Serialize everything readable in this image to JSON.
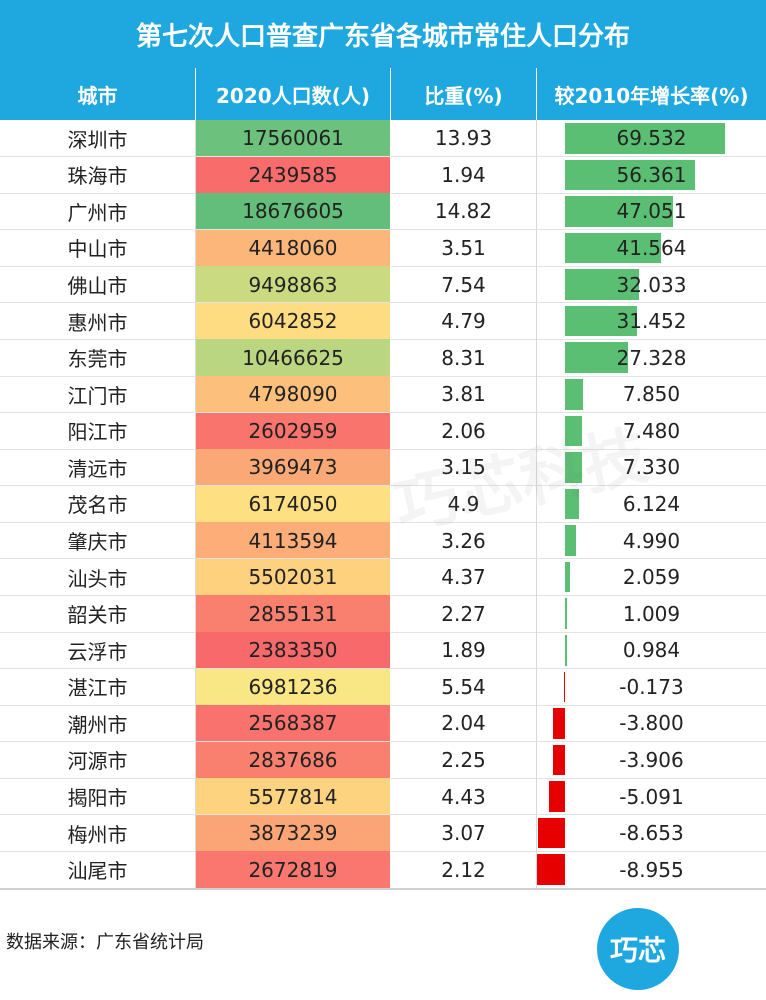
{
  "title": "第七次人口普查广东省各城市常住人口分布",
  "headers": {
    "city": "城市",
    "pop": "2020人口数(人)",
    "share": "比重(%)",
    "growth": "较2010年增长率(%)"
  },
  "footer": {
    "source": "数据来源：广东省统计局"
  },
  "logo": "巧芯",
  "watermark": "巧芯科技",
  "colors": {
    "header_bg": "#1FA7DF",
    "positive_bar": "#5BBF73",
    "negative_bar": "#E60000",
    "heat_high": "#63BE7B",
    "heat_mid": "#FFE984",
    "heat_low": "#F8696B"
  },
  "chart_data": {
    "type": "table",
    "title": "第七次人口普查广东省各城市常住人口分布",
    "columns": [
      "城市",
      "2020人口数(人)",
      "比重(%)",
      "较2010年增长率(%)"
    ],
    "rows": [
      {
        "city": "深圳市",
        "pop": 17560061,
        "share": "13.93",
        "growth": "69.532"
      },
      {
        "city": "珠海市",
        "pop": 2439585,
        "share": "1.94",
        "growth": "56.361"
      },
      {
        "city": "广州市",
        "pop": 18676605,
        "share": "14.82",
        "growth": "47.051"
      },
      {
        "city": "中山市",
        "pop": 4418060,
        "share": "3.51",
        "growth": "41.564"
      },
      {
        "city": "佛山市",
        "pop": 9498863,
        "share": "7.54",
        "growth": "32.033"
      },
      {
        "city": "惠州市",
        "pop": 6042852,
        "share": "4.79",
        "growth": "31.452"
      },
      {
        "city": "东莞市",
        "pop": 10466625,
        "share": "8.31",
        "growth": "27.328"
      },
      {
        "city": "江门市",
        "pop": 4798090,
        "share": "3.81",
        "growth": "7.850"
      },
      {
        "city": "阳江市",
        "pop": 2602959,
        "share": "2.06",
        "growth": "7.480"
      },
      {
        "city": "清远市",
        "pop": 3969473,
        "share": "3.15",
        "growth": "7.330"
      },
      {
        "city": "茂名市",
        "pop": 6174050,
        "share": "4.9",
        "growth": "6.124"
      },
      {
        "city": "肇庆市",
        "pop": 4113594,
        "share": "3.26",
        "growth": "4.990"
      },
      {
        "city": "汕头市",
        "pop": 5502031,
        "share": "4.37",
        "growth": "2.059"
      },
      {
        "city": "韶关市",
        "pop": 2855131,
        "share": "2.27",
        "growth": "1.009"
      },
      {
        "city": "云浮市",
        "pop": 2383350,
        "share": "1.89",
        "growth": "0.984"
      },
      {
        "city": "湛江市",
        "pop": 6981236,
        "share": "5.54",
        "growth": "-0.173"
      },
      {
        "city": "潮州市",
        "pop": 2568387,
        "share": "2.04",
        "growth": "-3.800"
      },
      {
        "city": "河源市",
        "pop": 2837686,
        "share": "2.25",
        "growth": "-3.906"
      },
      {
        "city": "揭阳市",
        "pop": 5577814,
        "share": "4.43",
        "growth": "-5.091"
      },
      {
        "city": "梅州市",
        "pop": 3873239,
        "share": "3.07",
        "growth": "-8.653"
      },
      {
        "city": "汕尾市",
        "pop": 2672819,
        "share": "2.12",
        "growth": "-8.955"
      }
    ]
  }
}
